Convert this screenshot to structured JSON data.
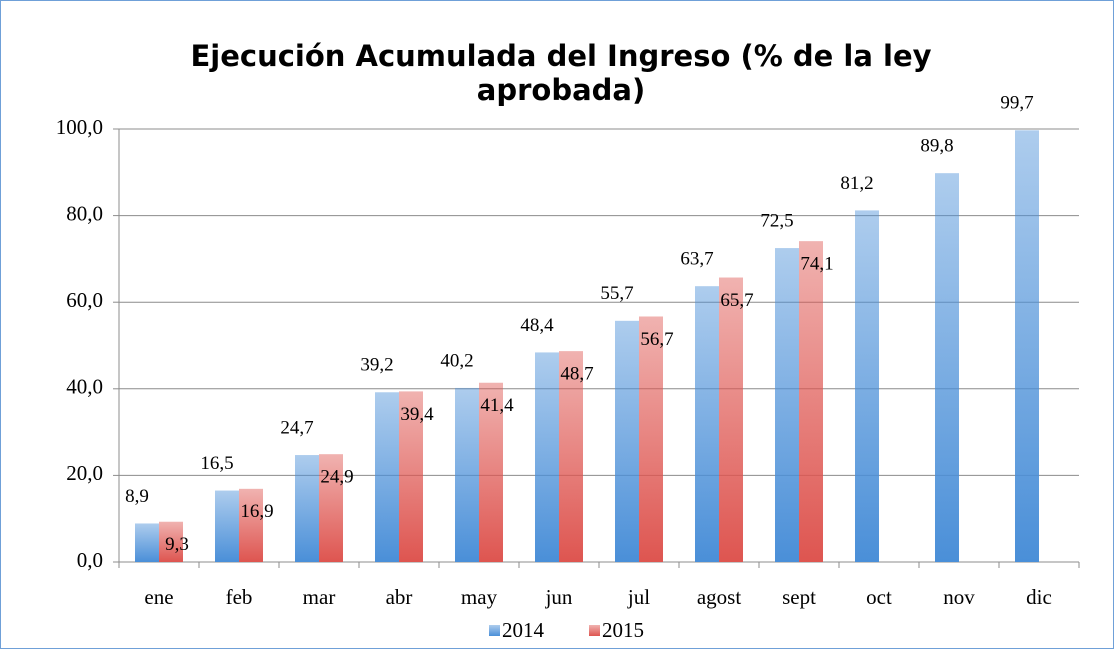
{
  "chart_data": {
    "type": "bar",
    "title": "Ejecución Acumulada del Ingreso (% de la ley aprobada)",
    "categories": [
      "ene",
      "feb",
      "mar",
      "abr",
      "may",
      "jun",
      "jul",
      "agost",
      "sept",
      "oct",
      "nov",
      "dic"
    ],
    "series": [
      {
        "name": "2014",
        "color": "#4a8fd8",
        "values": [
          8.9,
          16.5,
          24.7,
          39.2,
          40.2,
          48.4,
          55.7,
          63.7,
          72.5,
          81.2,
          89.8,
          99.7
        ],
        "value_labels": [
          "8,9",
          "16,5",
          "24,7",
          "39,2",
          "40,2",
          "48,4",
          "55,7",
          "63,7",
          "72,5",
          "81,2",
          "89,8",
          "99,7"
        ]
      },
      {
        "name": "2015",
        "color": "#de5550",
        "values": [
          9.3,
          16.9,
          24.9,
          39.4,
          41.4,
          48.7,
          56.7,
          65.7,
          74.1,
          null,
          null,
          null
        ],
        "value_labels": [
          "9,3",
          "16,9",
          "24,9",
          "39,4",
          "41,4",
          "48,7",
          "56,7",
          "65,7",
          "74,1",
          null,
          null,
          null
        ]
      }
    ],
    "ylim": [
      0,
      100
    ],
    "yticks": [
      {
        "value": 0,
        "label": "0,0"
      },
      {
        "value": 20,
        "label": "20,0"
      },
      {
        "value": 40,
        "label": "40,0"
      },
      {
        "value": 60,
        "label": "60,0"
      },
      {
        "value": 80,
        "label": "80,0"
      },
      {
        "value": 100,
        "label": "100,0"
      }
    ],
    "grid": true,
    "legend": "bottom"
  }
}
